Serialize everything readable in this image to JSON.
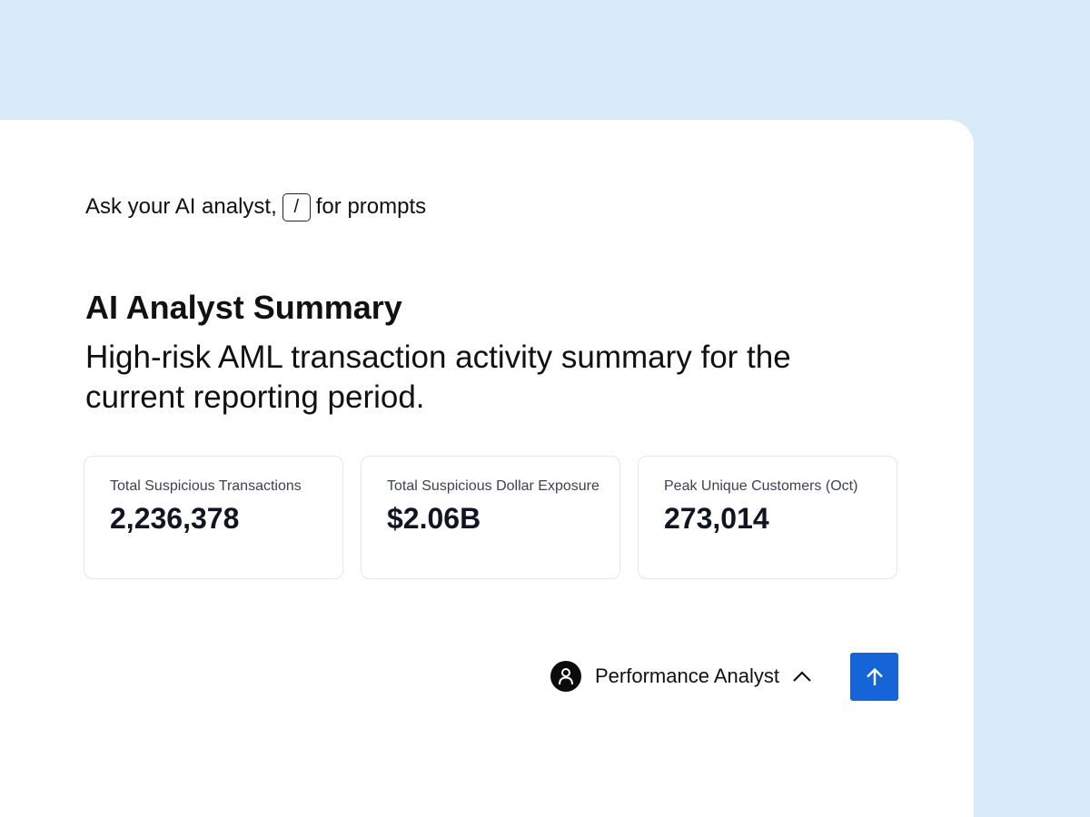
{
  "prompt": {
    "hint_before": "Ask your AI analyst,",
    "shortcut_key": "/",
    "hint_after": "for prompts"
  },
  "summary": {
    "title": "AI Analyst Summary",
    "description": "High-risk AML transaction activity summary for the current reporting period."
  },
  "metrics": [
    {
      "label": "Total Suspicious Transactions",
      "value": "2,236,378"
    },
    {
      "label": "Total Suspicious Dollar Exposure",
      "value": "$2.06B"
    },
    {
      "label": "Peak Unique Customers (Oct)",
      "value": "273,014"
    }
  ],
  "analyst_selector": {
    "label": "Performance Analyst",
    "icon": "user-icon",
    "chevron_icon": "chevron-up-icon"
  },
  "send_button": {
    "icon": "arrow-up-icon",
    "color": "#1565d8"
  },
  "colors": {
    "background": "#d9eaf8",
    "panel": "#ffffff",
    "accent": "#1565d8"
  }
}
